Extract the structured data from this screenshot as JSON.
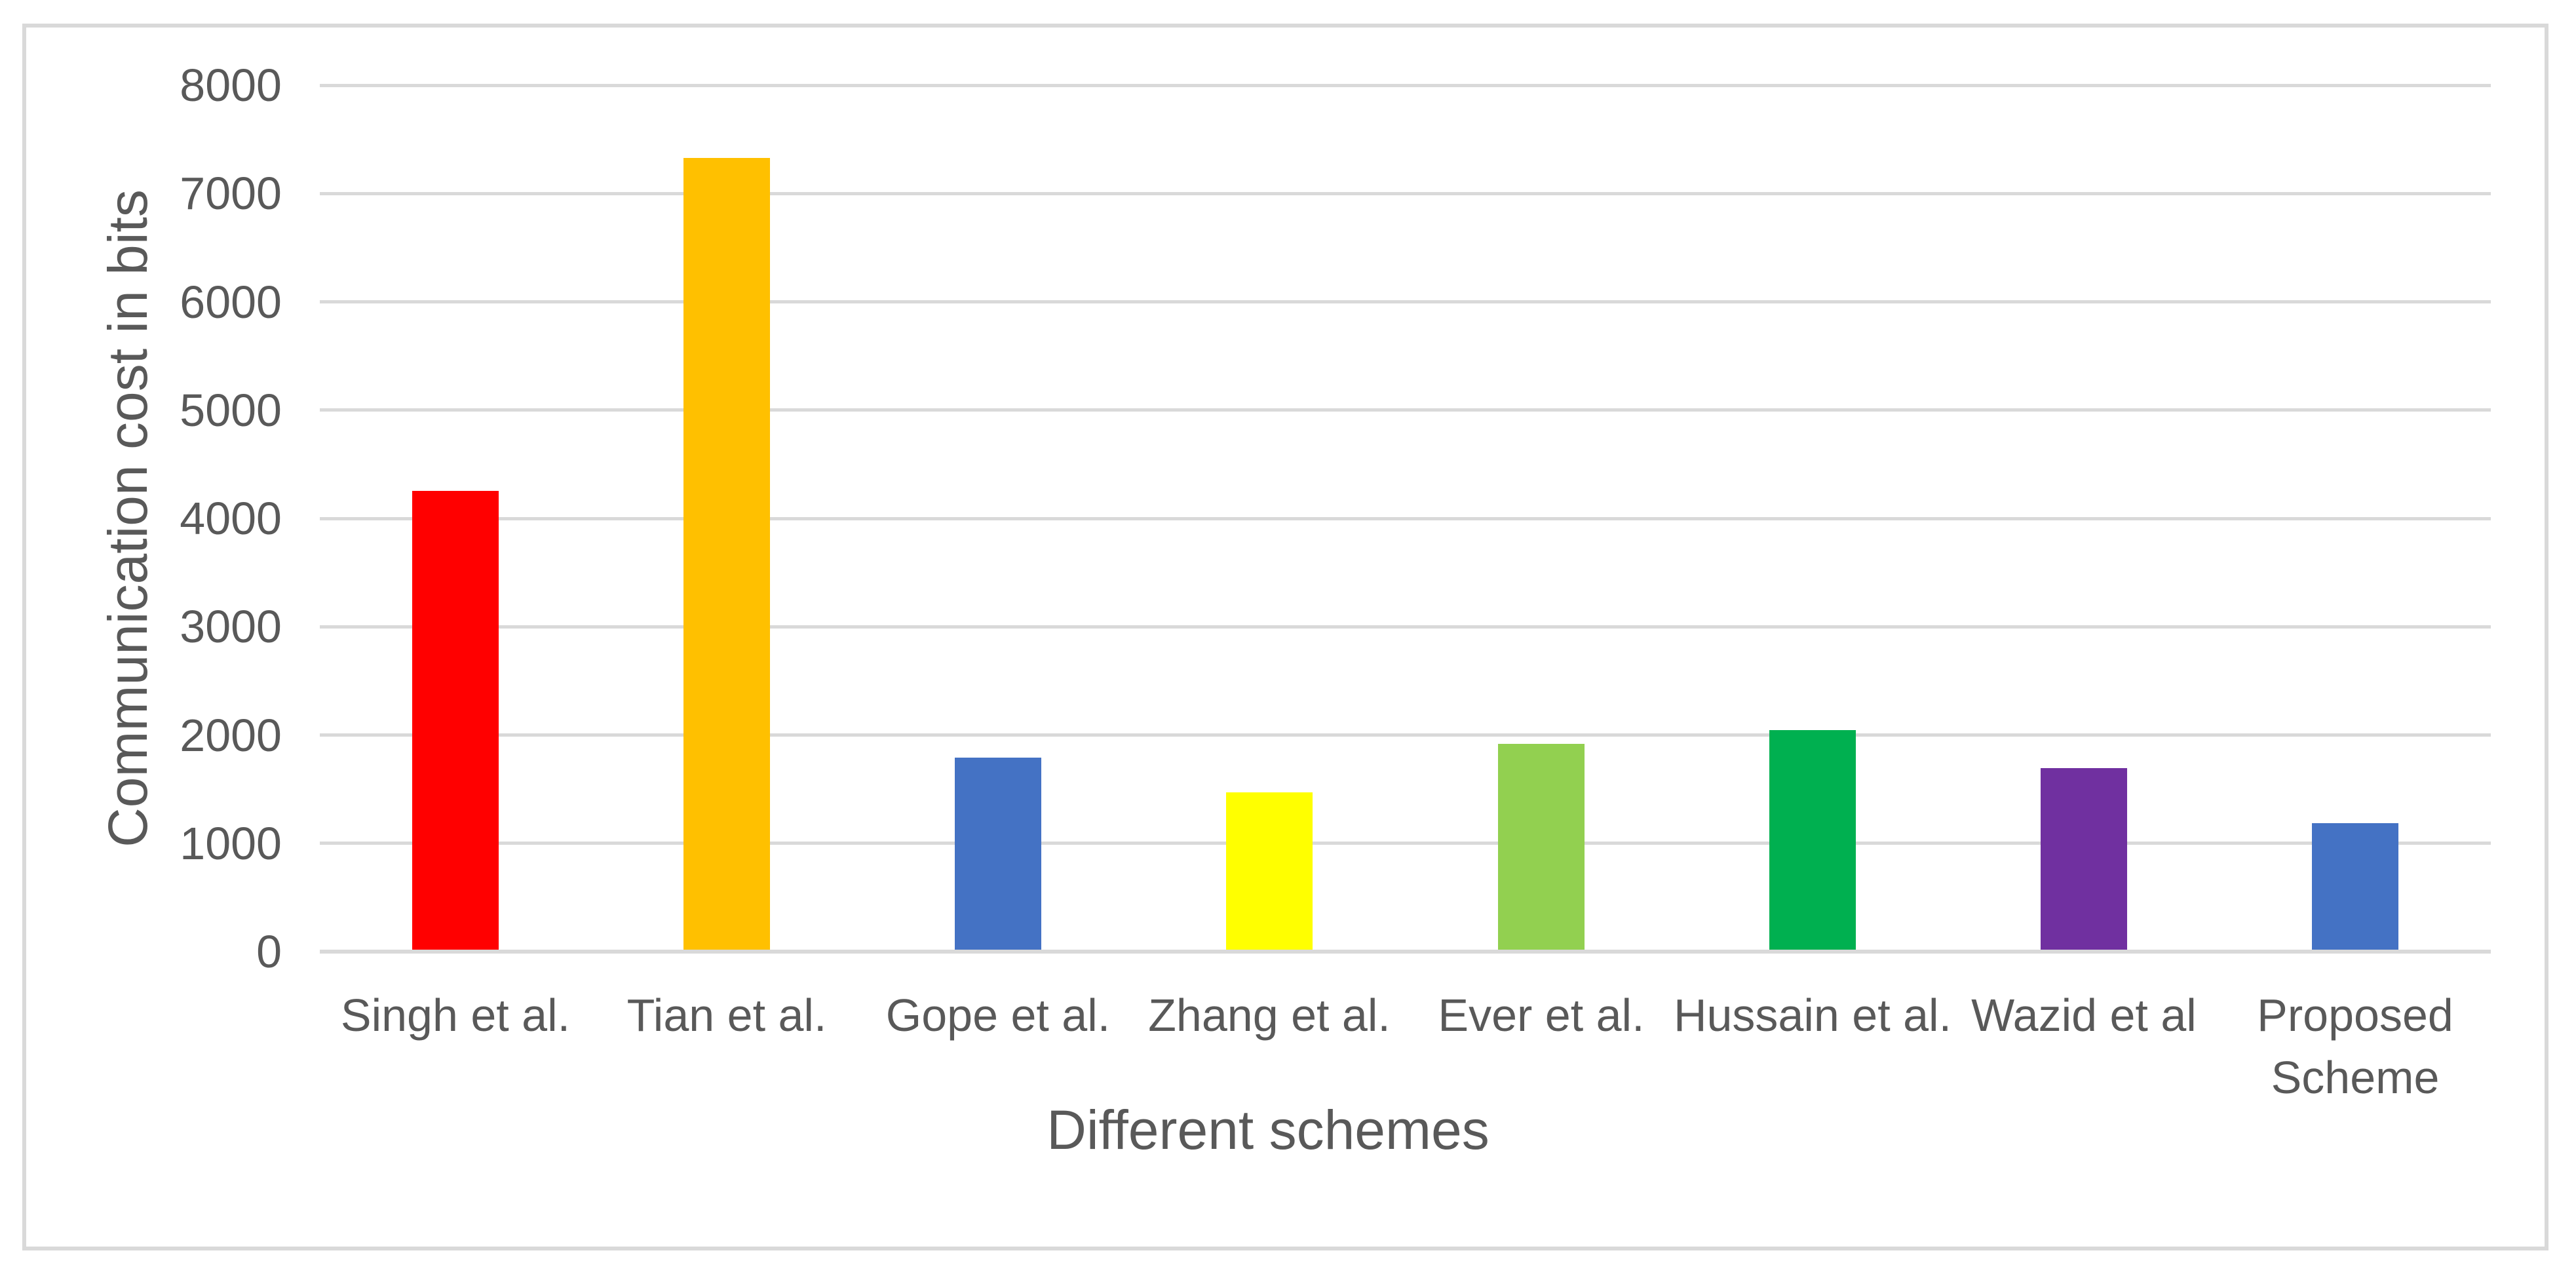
{
  "chart_data": {
    "type": "bar",
    "title": "",
    "categories": [
      "Singh et al.",
      "Tian et al.",
      "Gope et al.",
      "Zhang et al.",
      "Ever et al.",
      "Hussain et al.",
      "Wazid et al",
      "Proposed Scheme"
    ],
    "category_lines": [
      [
        "Singh et al."
      ],
      [
        "Tian et al."
      ],
      [
        "Gope et al."
      ],
      [
        "Zhang et al."
      ],
      [
        "Ever et al."
      ],
      [
        "Hussain et al."
      ],
      [
        "Wazid et al"
      ],
      [
        "Proposed",
        "Scheme"
      ]
    ],
    "values": [
      4256,
      7328,
      1792,
      1472,
      1920,
      2048,
      1696,
      1184
    ],
    "bar_colors": [
      "#FF0000",
      "#FFC000",
      "#4472C4",
      "#FFFF00",
      "#92D050",
      "#00B050",
      "#7030A0",
      "#4472C4"
    ],
    "xlabel": "Different schemes",
    "ylabel": "Communication cost in bits",
    "ylim": [
      0,
      8000
    ],
    "ytick_step": 1000,
    "yticks": [
      0,
      1000,
      2000,
      3000,
      4000,
      5000,
      6000,
      7000,
      8000
    ],
    "grid": "horizontal-only",
    "legend": "none"
  },
  "styles": {
    "text_color": "#595959",
    "gridline_color": "#D9D9D9",
    "axis_line_color": "#D9D9D9",
    "frame_border_color": "#D9D9D9",
    "background_color": "#FFFFFF"
  }
}
